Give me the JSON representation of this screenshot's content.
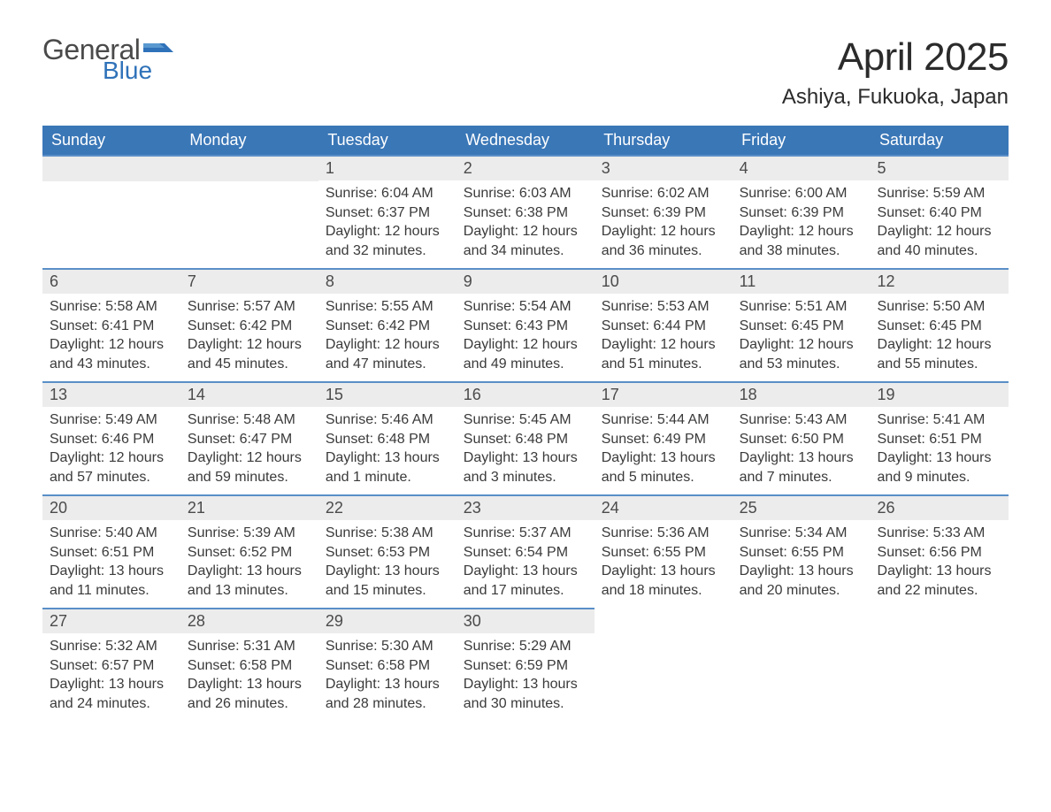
{
  "brand": {
    "word1": "General",
    "word2": "Blue",
    "flag_color": "#2f72b9",
    "text_gray": "#4a4a4a"
  },
  "header": {
    "month_title": "April 2025",
    "location": "Ashiya, Fukuoka, Japan"
  },
  "styling": {
    "header_row_bg": "#3a77b7",
    "header_row_text": "#ffffff",
    "daynum_bg": "#ececec",
    "cell_border_top": "#5a8fc7",
    "body_text": "#3a3a3a",
    "page_bg": "#ffffff",
    "font_family": "Arial",
    "month_title_fontsize": 44,
    "location_fontsize": 24,
    "weekday_fontsize": 18,
    "daynum_fontsize": 18,
    "body_fontsize": 16
  },
  "weekdays": [
    "Sunday",
    "Monday",
    "Tuesday",
    "Wednesday",
    "Thursday",
    "Friday",
    "Saturday"
  ],
  "weeks": [
    [
      null,
      null,
      {
        "n": "1",
        "sr": "Sunrise: 6:04 AM",
        "ss": "Sunset: 6:37 PM",
        "d1": "Daylight: 12 hours",
        "d2": "and 32 minutes."
      },
      {
        "n": "2",
        "sr": "Sunrise: 6:03 AM",
        "ss": "Sunset: 6:38 PM",
        "d1": "Daylight: 12 hours",
        "d2": "and 34 minutes."
      },
      {
        "n": "3",
        "sr": "Sunrise: 6:02 AM",
        "ss": "Sunset: 6:39 PM",
        "d1": "Daylight: 12 hours",
        "d2": "and 36 minutes."
      },
      {
        "n": "4",
        "sr": "Sunrise: 6:00 AM",
        "ss": "Sunset: 6:39 PM",
        "d1": "Daylight: 12 hours",
        "d2": "and 38 minutes."
      },
      {
        "n": "5",
        "sr": "Sunrise: 5:59 AM",
        "ss": "Sunset: 6:40 PM",
        "d1": "Daylight: 12 hours",
        "d2": "and 40 minutes."
      }
    ],
    [
      {
        "n": "6",
        "sr": "Sunrise: 5:58 AM",
        "ss": "Sunset: 6:41 PM",
        "d1": "Daylight: 12 hours",
        "d2": "and 43 minutes."
      },
      {
        "n": "7",
        "sr": "Sunrise: 5:57 AM",
        "ss": "Sunset: 6:42 PM",
        "d1": "Daylight: 12 hours",
        "d2": "and 45 minutes."
      },
      {
        "n": "8",
        "sr": "Sunrise: 5:55 AM",
        "ss": "Sunset: 6:42 PM",
        "d1": "Daylight: 12 hours",
        "d2": "and 47 minutes."
      },
      {
        "n": "9",
        "sr": "Sunrise: 5:54 AM",
        "ss": "Sunset: 6:43 PM",
        "d1": "Daylight: 12 hours",
        "d2": "and 49 minutes."
      },
      {
        "n": "10",
        "sr": "Sunrise: 5:53 AM",
        "ss": "Sunset: 6:44 PM",
        "d1": "Daylight: 12 hours",
        "d2": "and 51 minutes."
      },
      {
        "n": "11",
        "sr": "Sunrise: 5:51 AM",
        "ss": "Sunset: 6:45 PM",
        "d1": "Daylight: 12 hours",
        "d2": "and 53 minutes."
      },
      {
        "n": "12",
        "sr": "Sunrise: 5:50 AM",
        "ss": "Sunset: 6:45 PM",
        "d1": "Daylight: 12 hours",
        "d2": "and 55 minutes."
      }
    ],
    [
      {
        "n": "13",
        "sr": "Sunrise: 5:49 AM",
        "ss": "Sunset: 6:46 PM",
        "d1": "Daylight: 12 hours",
        "d2": "and 57 minutes."
      },
      {
        "n": "14",
        "sr": "Sunrise: 5:48 AM",
        "ss": "Sunset: 6:47 PM",
        "d1": "Daylight: 12 hours",
        "d2": "and 59 minutes."
      },
      {
        "n": "15",
        "sr": "Sunrise: 5:46 AM",
        "ss": "Sunset: 6:48 PM",
        "d1": "Daylight: 13 hours",
        "d2": "and 1 minute."
      },
      {
        "n": "16",
        "sr": "Sunrise: 5:45 AM",
        "ss": "Sunset: 6:48 PM",
        "d1": "Daylight: 13 hours",
        "d2": "and 3 minutes."
      },
      {
        "n": "17",
        "sr": "Sunrise: 5:44 AM",
        "ss": "Sunset: 6:49 PM",
        "d1": "Daylight: 13 hours",
        "d2": "and 5 minutes."
      },
      {
        "n": "18",
        "sr": "Sunrise: 5:43 AM",
        "ss": "Sunset: 6:50 PM",
        "d1": "Daylight: 13 hours",
        "d2": "and 7 minutes."
      },
      {
        "n": "19",
        "sr": "Sunrise: 5:41 AM",
        "ss": "Sunset: 6:51 PM",
        "d1": "Daylight: 13 hours",
        "d2": "and 9 minutes."
      }
    ],
    [
      {
        "n": "20",
        "sr": "Sunrise: 5:40 AM",
        "ss": "Sunset: 6:51 PM",
        "d1": "Daylight: 13 hours",
        "d2": "and 11 minutes."
      },
      {
        "n": "21",
        "sr": "Sunrise: 5:39 AM",
        "ss": "Sunset: 6:52 PM",
        "d1": "Daylight: 13 hours",
        "d2": "and 13 minutes."
      },
      {
        "n": "22",
        "sr": "Sunrise: 5:38 AM",
        "ss": "Sunset: 6:53 PM",
        "d1": "Daylight: 13 hours",
        "d2": "and 15 minutes."
      },
      {
        "n": "23",
        "sr": "Sunrise: 5:37 AM",
        "ss": "Sunset: 6:54 PM",
        "d1": "Daylight: 13 hours",
        "d2": "and 17 minutes."
      },
      {
        "n": "24",
        "sr": "Sunrise: 5:36 AM",
        "ss": "Sunset: 6:55 PM",
        "d1": "Daylight: 13 hours",
        "d2": "and 18 minutes."
      },
      {
        "n": "25",
        "sr": "Sunrise: 5:34 AM",
        "ss": "Sunset: 6:55 PM",
        "d1": "Daylight: 13 hours",
        "d2": "and 20 minutes."
      },
      {
        "n": "26",
        "sr": "Sunrise: 5:33 AM",
        "ss": "Sunset: 6:56 PM",
        "d1": "Daylight: 13 hours",
        "d2": "and 22 minutes."
      }
    ],
    [
      {
        "n": "27",
        "sr": "Sunrise: 5:32 AM",
        "ss": "Sunset: 6:57 PM",
        "d1": "Daylight: 13 hours",
        "d2": "and 24 minutes."
      },
      {
        "n": "28",
        "sr": "Sunrise: 5:31 AM",
        "ss": "Sunset: 6:58 PM",
        "d1": "Daylight: 13 hours",
        "d2": "and 26 minutes."
      },
      {
        "n": "29",
        "sr": "Sunrise: 5:30 AM",
        "ss": "Sunset: 6:58 PM",
        "d1": "Daylight: 13 hours",
        "d2": "and 28 minutes."
      },
      {
        "n": "30",
        "sr": "Sunrise: 5:29 AM",
        "ss": "Sunset: 6:59 PM",
        "d1": "Daylight: 13 hours",
        "d2": "and 30 minutes."
      },
      null,
      null,
      null
    ]
  ]
}
